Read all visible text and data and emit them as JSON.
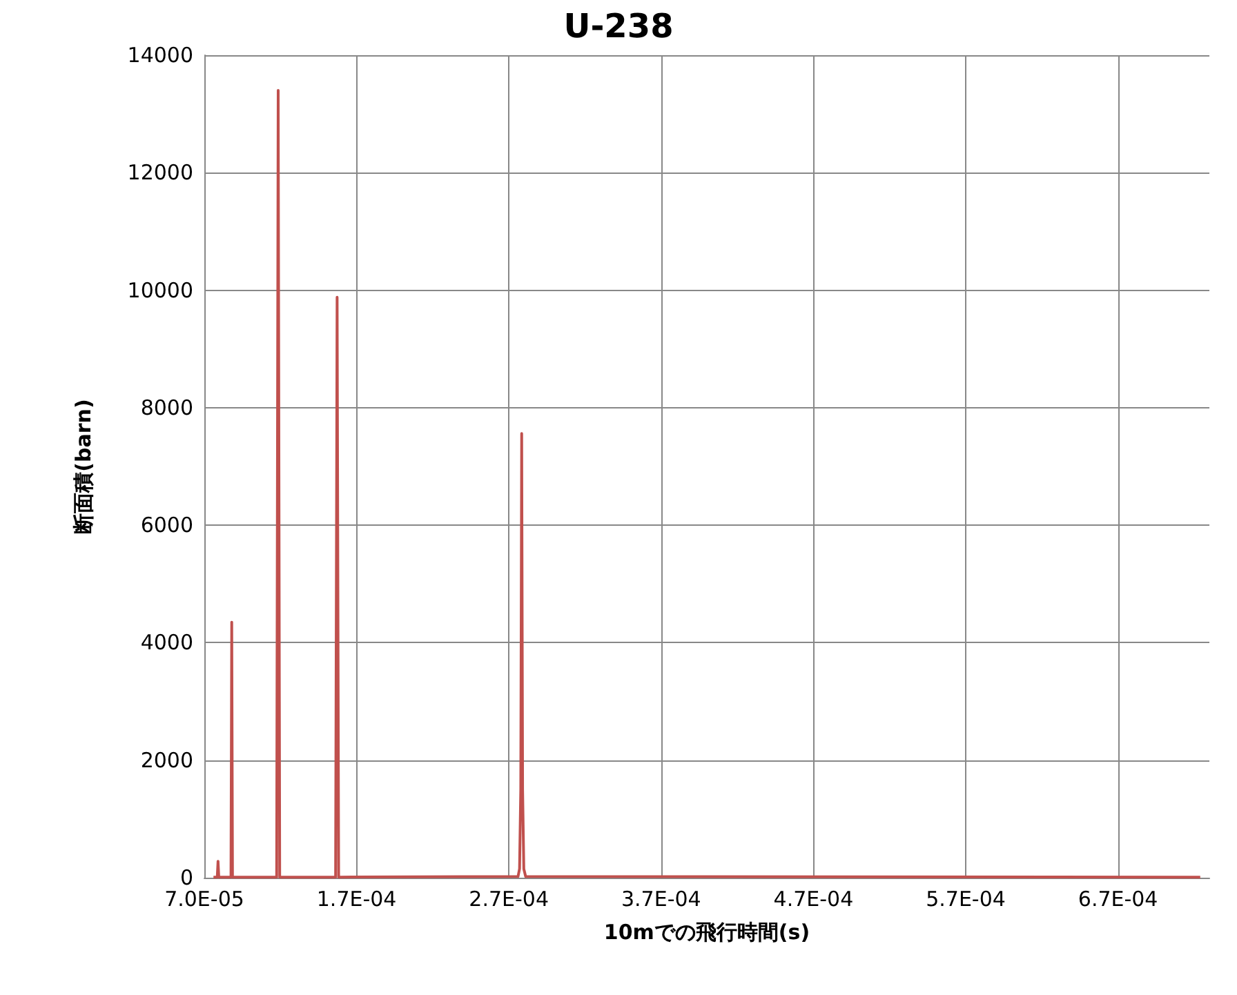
{
  "chart_data": {
    "type": "line",
    "title": "U-238",
    "xlabel": "10mでの飛行時間(s)",
    "ylabel": "断面積(barn)",
    "series": [
      {
        "color": "#c0504d",
        "x": [
          7.6e-05,
          7.85e-05,
          7.9e-05,
          7.95e-05,
          8.75e-05,
          8.8e-05,
          8.85e-05,
          0.0001175,
          0.0001185,
          0.0001195,
          0.0001562,
          0.0001572,
          0.0001582,
          0.000276,
          0.000277,
          0.0002778,
          0.0002784,
          0.000279,
          0.0002798,
          0.000281,
          0.000724
        ],
        "values": [
          10,
          10,
          280,
          10,
          10,
          4350,
          10,
          10,
          13400,
          10,
          10,
          9880,
          10,
          20,
          150,
          1500,
          7560,
          1500,
          150,
          20,
          10
        ]
      }
    ],
    "xlim": [
      7e-05,
      0.00073
    ],
    "xticks": [
      {
        "value": 7e-05,
        "label": "7.0E-05"
      },
      {
        "value": 0.00017,
        "label": "1.7E-04"
      },
      {
        "value": 0.00027,
        "label": "2.7E-04"
      },
      {
        "value": 0.00037,
        "label": "3.7E-04"
      },
      {
        "value": 0.00047,
        "label": "4.7E-04"
      },
      {
        "value": 0.00057,
        "label": "5.7E-04"
      },
      {
        "value": 0.00067,
        "label": "6.7E-04"
      }
    ],
    "ylim": [
      0,
      14000
    ],
    "yticks": [
      0,
      2000,
      4000,
      6000,
      8000,
      10000,
      12000,
      14000
    ],
    "grid": true,
    "marker": "none",
    "line_style": "solid"
  }
}
